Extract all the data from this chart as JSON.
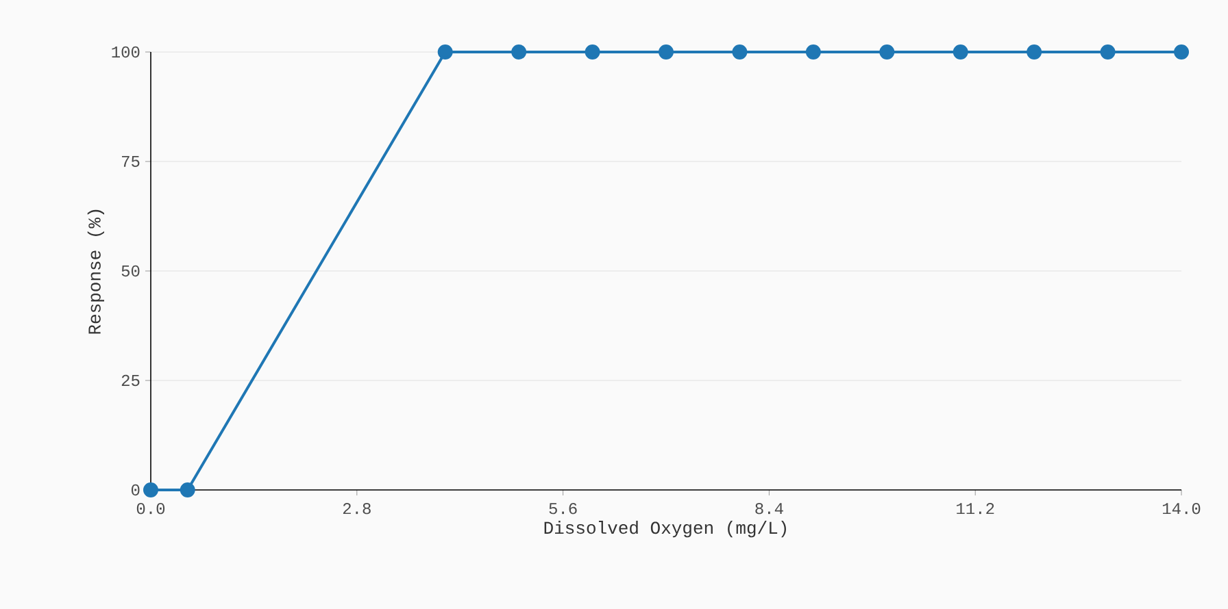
{
  "chart_data": {
    "type": "line",
    "xlabel": "Dissolved Oxygen (mg/L)",
    "ylabel": "Response (%)",
    "x": [
      0,
      0.5,
      4,
      5,
      6,
      7,
      8,
      9,
      10,
      11,
      12,
      13,
      14
    ],
    "series": [
      {
        "color": "#1f77b4",
        "values": [
          0,
          0,
          100,
          100,
          100,
          100,
          100,
          100,
          100,
          100,
          100,
          100,
          100
        ]
      }
    ],
    "xlim": [
      0,
      14
    ],
    "ylim": [
      0,
      100
    ],
    "xticks": [
      {
        "value": 0,
        "label": "0.0"
      },
      {
        "value": 2.8,
        "label": "2.8"
      },
      {
        "value": 5.6,
        "label": "5.6"
      },
      {
        "value": 8.4,
        "label": "8.4"
      },
      {
        "value": 11.2,
        "label": "11.2"
      },
      {
        "value": 14,
        "label": "14.0"
      }
    ],
    "yticks": [
      0,
      25,
      50,
      75,
      100
    ],
    "grid": "y",
    "marker": "circle",
    "line_style": "solid"
  }
}
